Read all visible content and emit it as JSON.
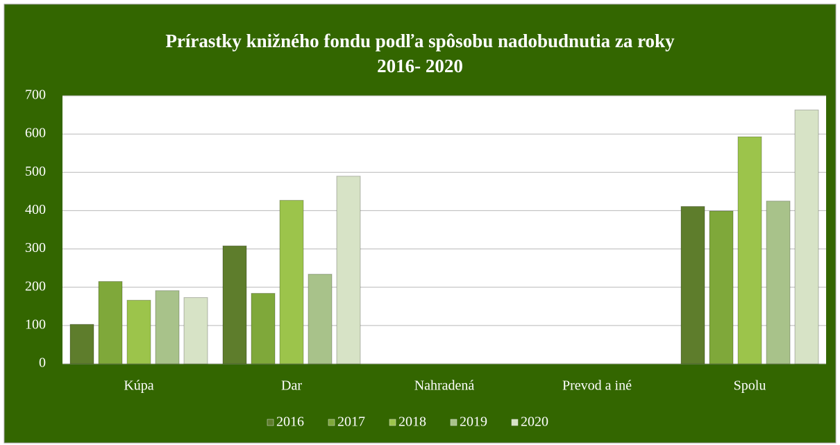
{
  "chart_data": {
    "type": "bar",
    "title": [
      "Prírastky knižného fondu  podľa spôsobu nadobudnutia za roky",
      "2016- 2020"
    ],
    "categories": [
      "Kúpa",
      "Dar",
      "Nahradená",
      "Prevod a iné",
      "Spolu"
    ],
    "series": [
      {
        "name": "2016",
        "color": "#5e7d2c",
        "values": [
          103,
          308,
          0,
          0,
          411
        ]
      },
      {
        "name": "2017",
        "color": "#7fa83a",
        "values": [
          215,
          184,
          0,
          0,
          399
        ]
      },
      {
        "name": "2018",
        "color": "#9cc44b",
        "values": [
          166,
          427,
          0,
          0,
          593
        ]
      },
      {
        "name": "2019",
        "color": "#a8c28a",
        "values": [
          191,
          234,
          0,
          0,
          425
        ]
      },
      {
        "name": "2020",
        "color": "#d7e3c6",
        "values": [
          173,
          490,
          0,
          0,
          663
        ]
      }
    ],
    "ylim": [
      0,
      700
    ],
    "yticks": [
      0,
      100,
      200,
      300,
      400,
      500,
      600,
      700
    ],
    "grid": true,
    "legend": "bottom"
  }
}
